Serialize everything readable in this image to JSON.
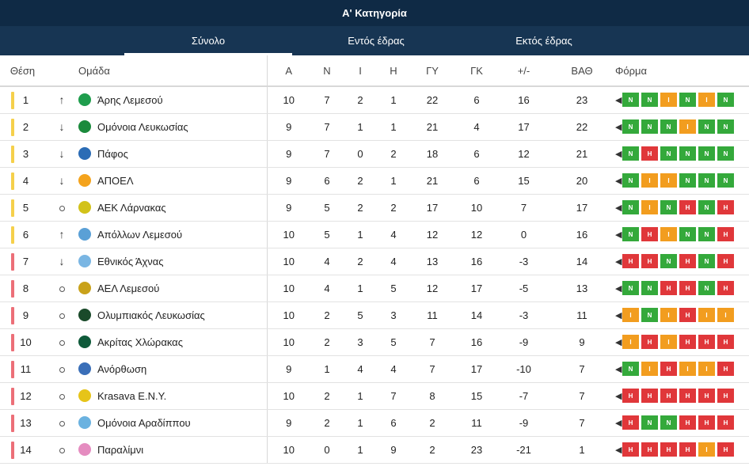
{
  "header": {
    "title": "Α' Κατηγορία"
  },
  "tabs": [
    {
      "label": "Σύνολο",
      "active": true
    },
    {
      "label": "Εντός έδρας",
      "active": false
    },
    {
      "label": "Εκτός έδρας",
      "active": false
    }
  ],
  "columns": {
    "pos": "Θέση",
    "team": "Ομάδα",
    "played": "Α",
    "won": "Ν",
    "drawn": "Ι",
    "lost": "Η",
    "gf": "ΓΥ",
    "ga": "ΓΚ",
    "gd": "+/-",
    "pts": "ΒΑΘ",
    "form": "Φόρμα"
  },
  "colors": {
    "zone_top": "#f5d04b",
    "zone_bottom": "#ec6f78",
    "win": "#34a93b",
    "draw": "#f29d1f",
    "loss": "#e0373a"
  },
  "rows": [
    {
      "pos": "1",
      "zone": "top",
      "trend": "up",
      "team": "Άρης Λεμεσού",
      "crest": "#1f9d4d",
      "played": "10",
      "won": "7",
      "drawn": "2",
      "lost": "1",
      "gf": "22",
      "ga": "6",
      "gd": "16",
      "pts": "23",
      "form": [
        "Ν",
        "Ν",
        "Ι",
        "Ν",
        "Ι",
        "Ν"
      ]
    },
    {
      "pos": "2",
      "zone": "top",
      "trend": "down",
      "team": "Ομόνοια Λευκωσίας",
      "crest": "#1b8a3c",
      "played": "9",
      "won": "7",
      "drawn": "1",
      "lost": "1",
      "gf": "21",
      "ga": "4",
      "gd": "17",
      "pts": "22",
      "form": [
        "Ν",
        "Ν",
        "Ν",
        "Ι",
        "Ν",
        "Ν"
      ]
    },
    {
      "pos": "3",
      "zone": "top",
      "trend": "down",
      "team": "Πάφος",
      "crest": "#2b6cb5",
      "played": "9",
      "won": "7",
      "drawn": "0",
      "lost": "2",
      "gf": "18",
      "ga": "6",
      "gd": "12",
      "pts": "21",
      "form": [
        "Ν",
        "Η",
        "Ν",
        "Ν",
        "Ν",
        "Ν"
      ]
    },
    {
      "pos": "4",
      "zone": "top",
      "trend": "down",
      "team": "ΑΠΟΕΛ",
      "crest": "#f4a31c",
      "played": "9",
      "won": "6",
      "drawn": "2",
      "lost": "1",
      "gf": "21",
      "ga": "6",
      "gd": "15",
      "pts": "20",
      "form": [
        "Ν",
        "Ι",
        "Ι",
        "Ν",
        "Ν",
        "Ν"
      ]
    },
    {
      "pos": "5",
      "zone": "top",
      "trend": "same",
      "team": "ΑΕΚ Λάρνακας",
      "crest": "#d2c21a",
      "played": "9",
      "won": "5",
      "drawn": "2",
      "lost": "2",
      "gf": "17",
      "ga": "10",
      "gd": "7",
      "pts": "17",
      "form": [
        "Ν",
        "Ι",
        "Ν",
        "Η",
        "Ν",
        "Η"
      ]
    },
    {
      "pos": "6",
      "zone": "top",
      "trend": "up",
      "team": "Απόλλων Λεμεσού",
      "crest": "#5aa0d6",
      "played": "10",
      "won": "5",
      "drawn": "1",
      "lost": "4",
      "gf": "12",
      "ga": "12",
      "gd": "0",
      "pts": "16",
      "form": [
        "Ν",
        "Η",
        "Ι",
        "Ν",
        "Ν",
        "Η"
      ]
    },
    {
      "pos": "7",
      "zone": "bottom",
      "trend": "down",
      "team": "Εθνικός Άχνας",
      "crest": "#7ab6e3",
      "played": "10",
      "won": "4",
      "drawn": "2",
      "lost": "4",
      "gf": "13",
      "ga": "16",
      "gd": "-3",
      "pts": "14",
      "form": [
        "Η",
        "Η",
        "Ν",
        "Η",
        "Ν",
        "Η"
      ]
    },
    {
      "pos": "8",
      "zone": "bottom",
      "trend": "same",
      "team": "ΑΕΛ Λεμεσού",
      "crest": "#c9a21a",
      "played": "10",
      "won": "4",
      "drawn": "1",
      "lost": "5",
      "gf": "12",
      "ga": "17",
      "gd": "-5",
      "pts": "13",
      "form": [
        "Ν",
        "Ν",
        "Η",
        "Η",
        "Ν",
        "Η"
      ]
    },
    {
      "pos": "9",
      "zone": "bottom",
      "trend": "same",
      "team": "Ολυμπιακός Λευκωσίας",
      "crest": "#1a4a2a",
      "played": "10",
      "won": "2",
      "drawn": "5",
      "lost": "3",
      "gf": "11",
      "ga": "14",
      "gd": "-3",
      "pts": "11",
      "form": [
        "Ι",
        "Ν",
        "Ι",
        "Η",
        "Ι",
        "Ι"
      ]
    },
    {
      "pos": "10",
      "zone": "bottom",
      "trend": "same",
      "team": "Ακρίτας Χλώρακας",
      "crest": "#0f5a3a",
      "played": "10",
      "won": "2",
      "drawn": "3",
      "lost": "5",
      "gf": "7",
      "ga": "16",
      "gd": "-9",
      "pts": "9",
      "form": [
        "Ι",
        "Η",
        "Ι",
        "Η",
        "Η",
        "Η"
      ]
    },
    {
      "pos": "11",
      "zone": "bottom",
      "trend": "same",
      "team": "Ανόρθωση",
      "crest": "#3a6fb8",
      "played": "9",
      "won": "1",
      "drawn": "4",
      "lost": "4",
      "gf": "7",
      "ga": "17",
      "gd": "-10",
      "pts": "7",
      "form": [
        "Ν",
        "Ι",
        "Η",
        "Ι",
        "Ι",
        "Η"
      ]
    },
    {
      "pos": "12",
      "zone": "bottom",
      "trend": "same",
      "team": "Krasava E.N.Y.",
      "crest": "#e6c419",
      "played": "10",
      "won": "2",
      "drawn": "1",
      "lost": "7",
      "gf": "8",
      "ga": "15",
      "gd": "-7",
      "pts": "7",
      "form": [
        "Η",
        "Η",
        "Η",
        "Η",
        "Η",
        "Η"
      ]
    },
    {
      "pos": "13",
      "zone": "bottom",
      "trend": "same",
      "team": "Ομόνοια Αραδίππου",
      "crest": "#6bb2e0",
      "played": "9",
      "won": "2",
      "drawn": "1",
      "lost": "6",
      "gf": "2",
      "ga": "11",
      "gd": "-9",
      "pts": "7",
      "form": [
        "Η",
        "Ν",
        "Ν",
        "Η",
        "Η",
        "Η"
      ]
    },
    {
      "pos": "14",
      "zone": "bottom",
      "trend": "same",
      "team": "Παραλίμνι",
      "crest": "#e58cc0",
      "played": "10",
      "won": "0",
      "drawn": "1",
      "lost": "9",
      "gf": "2",
      "ga": "23",
      "gd": "-21",
      "pts": "1",
      "form": [
        "Η",
        "Η",
        "Η",
        "Η",
        "Ι",
        "Η"
      ]
    }
  ]
}
